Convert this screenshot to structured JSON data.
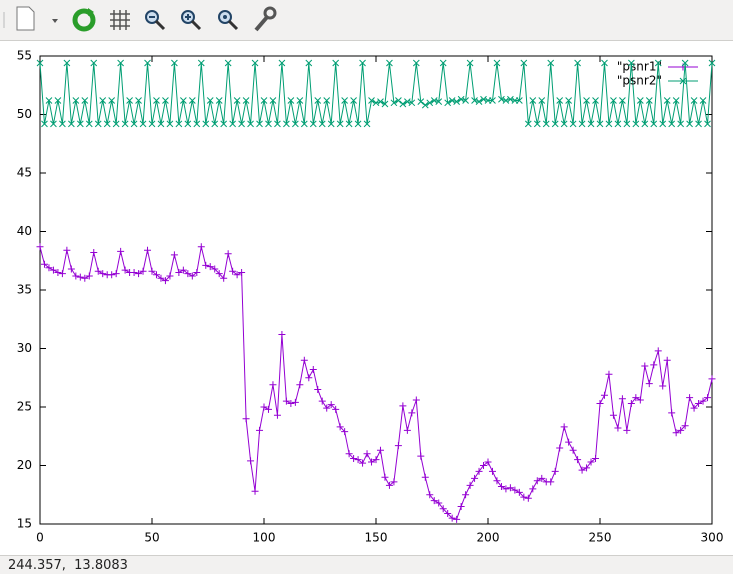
{
  "chart_data": {
    "type": "line",
    "x": [
      0,
      2,
      4,
      6,
      8,
      10,
      12,
      14,
      16,
      18,
      20,
      22,
      24,
      26,
      28,
      30,
      32,
      34,
      36,
      38,
      40,
      42,
      44,
      46,
      48,
      50,
      52,
      54,
      56,
      58,
      60,
      62,
      64,
      66,
      68,
      70,
      72,
      74,
      76,
      78,
      80,
      82,
      84,
      86,
      88,
      90,
      92,
      94,
      96,
      98,
      100,
      102,
      104,
      106,
      108,
      110,
      112,
      114,
      116,
      118,
      120,
      122,
      124,
      126,
      128,
      130,
      132,
      134,
      136,
      138,
      140,
      142,
      144,
      146,
      148,
      150,
      152,
      154,
      156,
      158,
      160,
      162,
      164,
      166,
      168,
      170,
      172,
      174,
      176,
      178,
      180,
      182,
      184,
      186,
      188,
      190,
      192,
      194,
      196,
      198,
      200,
      202,
      204,
      206,
      208,
      210,
      212,
      214,
      216,
      218,
      220,
      222,
      224,
      226,
      228,
      230,
      232,
      234,
      236,
      238,
      240,
      242,
      244,
      246,
      248,
      250,
      252,
      254,
      256,
      258,
      260,
      262,
      264,
      266,
      268,
      270,
      272,
      274,
      276,
      278,
      280,
      282,
      284,
      286,
      288,
      290,
      292,
      294,
      296,
      298,
      300
    ],
    "series": [
      {
        "name": "\"psnr1\"",
        "color": "#9400d3",
        "marker": "plus",
        "values": [
          38.7,
          37.2,
          36.9,
          36.7,
          36.5,
          36.4,
          38.4,
          36.8,
          36.2,
          36.1,
          36.0,
          36.2,
          38.2,
          36.6,
          36.4,
          36.3,
          36.3,
          36.4,
          38.3,
          36.7,
          36.5,
          36.5,
          36.4,
          36.6,
          38.4,
          36.6,
          36.3,
          36.0,
          35.8,
          36.2,
          38.0,
          36.5,
          36.7,
          36.4,
          36.2,
          36.5,
          38.7,
          37.1,
          37.0,
          36.8,
          36.4,
          36.0,
          38.1,
          36.6,
          36.3,
          36.5,
          24.0,
          20.4,
          17.8,
          23.0,
          25.0,
          24.8,
          26.9,
          24.3,
          31.2,
          25.5,
          25.3,
          25.4,
          26.9,
          29.0,
          27.5,
          28.2,
          26.5,
          25.5,
          24.9,
          25.2,
          24.8,
          23.3,
          22.9,
          21.0,
          20.6,
          20.5,
          20.2,
          21.0,
          20.3,
          20.5,
          21.3,
          19.0,
          18.3,
          18.6,
          21.7,
          25.1,
          23.0,
          24.5,
          25.6,
          20.8,
          19.0,
          17.5,
          17.0,
          16.8,
          16.3,
          15.9,
          15.5,
          15.4,
          16.5,
          17.5,
          18.3,
          18.9,
          19.5,
          20.0,
          20.3,
          19.5,
          18.7,
          18.2,
          18.0,
          18.1,
          17.9,
          17.7,
          17.3,
          17.2,
          18.0,
          18.7,
          18.9,
          18.6,
          18.6,
          19.5,
          21.5,
          23.3,
          22.0,
          21.3,
          20.5,
          19.6,
          19.8,
          20.3,
          20.6,
          25.3,
          26.0,
          27.8,
          24.3,
          23.2,
          25.7,
          23.0,
          25.3,
          25.8,
          25.6,
          28.5,
          27.0,
          28.6,
          29.8,
          26.8,
          29.0,
          24.5,
          22.8,
          23.0,
          23.4,
          25.8,
          24.9,
          25.3,
          25.5,
          25.8,
          27.4
        ]
      },
      {
        "name": "\"psnr2\"",
        "color": "#009e73",
        "marker": "cross",
        "values": [
          54.4,
          49.2,
          51.2,
          49.2,
          51.2,
          49.2,
          54.4,
          49.2,
          51.2,
          49.2,
          51.2,
          49.2,
          54.4,
          49.2,
          51.2,
          49.2,
          51.2,
          49.2,
          54.4,
          49.2,
          51.2,
          49.2,
          51.2,
          49.2,
          54.4,
          49.2,
          51.2,
          49.2,
          51.2,
          49.2,
          54.4,
          49.2,
          51.2,
          49.2,
          51.2,
          49.2,
          54.4,
          49.2,
          51.2,
          49.2,
          51.2,
          49.2,
          54.4,
          49.2,
          51.2,
          49.2,
          51.2,
          49.2,
          54.4,
          49.2,
          51.2,
          49.2,
          51.2,
          49.2,
          54.4,
          49.2,
          51.2,
          49.2,
          51.2,
          49.2,
          54.4,
          49.2,
          51.2,
          49.2,
          51.2,
          49.2,
          54.4,
          49.2,
          51.2,
          49.2,
          51.2,
          49.2,
          54.4,
          49.2,
          51.2,
          51.0,
          51.1,
          50.9,
          54.4,
          51.0,
          51.2,
          50.9,
          51.1,
          51.0,
          54.4,
          51.1,
          50.8,
          51.0,
          51.2,
          51.1,
          54.4,
          51.0,
          51.2,
          51.1,
          51.3,
          51.2,
          54.4,
          51.2,
          51.1,
          51.3,
          51.2,
          51.2,
          54.4,
          51.3,
          51.2,
          51.3,
          51.2,
          51.2,
          54.4,
          49.2,
          51.2,
          49.2,
          51.2,
          49.2,
          54.4,
          49.2,
          51.2,
          49.2,
          51.2,
          49.2,
          54.4,
          49.2,
          51.2,
          49.2,
          51.2,
          49.2,
          54.4,
          49.2,
          51.2,
          49.2,
          51.2,
          49.2,
          54.4,
          49.2,
          51.2,
          49.2,
          51.2,
          49.2,
          54.4,
          49.2,
          51.2,
          49.2,
          51.2,
          49.2,
          54.4,
          49.2,
          51.2,
          49.2,
          51.2,
          49.2,
          54.4
        ]
      }
    ],
    "xlim": [
      0,
      300
    ],
    "xticks": [
      0,
      50,
      100,
      150,
      200,
      250,
      300
    ],
    "ylim": [
      15,
      55
    ],
    "yticks": [
      15,
      20,
      25,
      30,
      35,
      40,
      45,
      50,
      55
    ],
    "grid": false,
    "legend": "top-right"
  },
  "status_bar": {
    "text": "244.357,  13.8083"
  }
}
